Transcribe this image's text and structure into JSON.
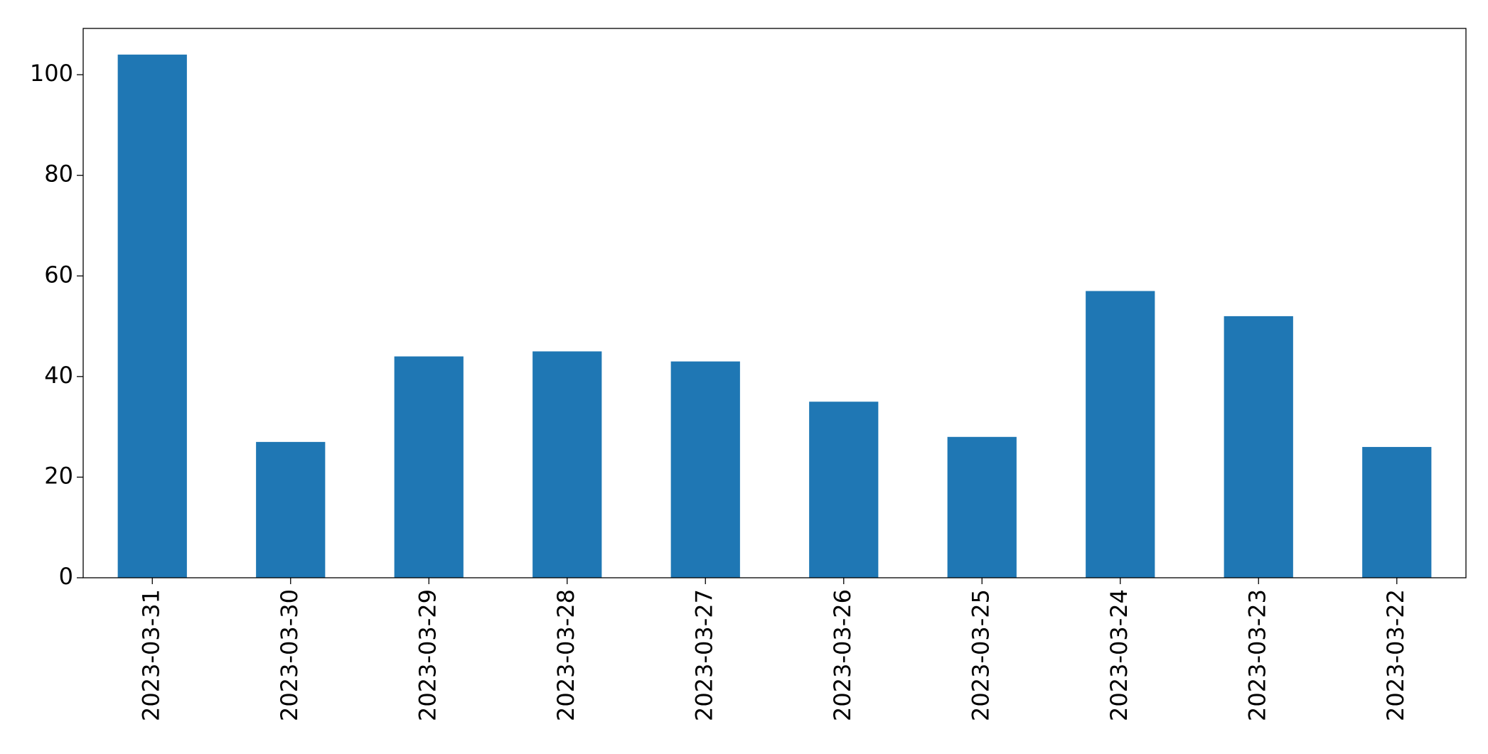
{
  "chart_data": {
    "type": "bar",
    "categories": [
      "2023-03-31",
      "2023-03-30",
      "2023-03-29",
      "2023-03-28",
      "2023-03-27",
      "2023-03-26",
      "2023-03-25",
      "2023-03-24",
      "2023-03-23",
      "2023-03-22"
    ],
    "values": [
      104,
      27,
      44,
      45,
      43,
      35,
      28,
      57,
      52,
      26
    ],
    "color": "#1f77b4",
    "ylim": [
      0,
      109.2
    ],
    "yticks": [
      0,
      20,
      40,
      60,
      80,
      100
    ],
    "grid": false
  }
}
